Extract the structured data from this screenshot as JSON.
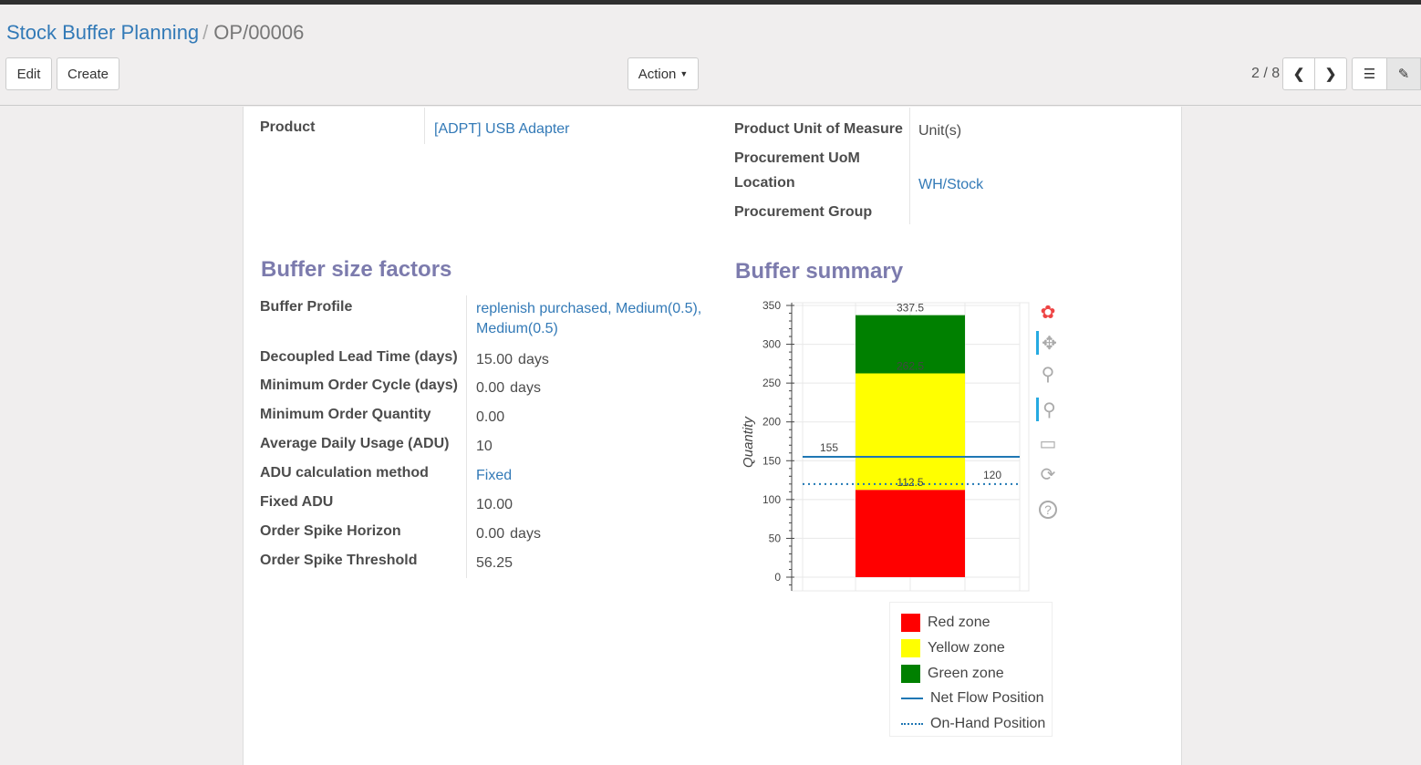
{
  "breadcrumb": {
    "parent": "Stock Buffer Planning",
    "current": "OP/00006"
  },
  "buttons": {
    "edit": "Edit",
    "create": "Create",
    "action": "Action"
  },
  "pager": {
    "value": "2 / 8"
  },
  "fields": {
    "product": {
      "label": "Product",
      "value": "[ADPT] USB Adapter"
    },
    "uom": {
      "label": "Product Unit of Measure",
      "value": "Unit(s)"
    },
    "proc_uom": {
      "label": "Procurement UoM",
      "value": ""
    },
    "location": {
      "label": "Location",
      "value": "WH/Stock"
    },
    "proc_group": {
      "label": "Procurement Group",
      "value": ""
    }
  },
  "factors": {
    "title": "Buffer size factors",
    "rows": [
      {
        "label": "Buffer Profile",
        "value": "replenish purchased, Medium(0.5), Medium(0.5)",
        "unit": "",
        "link": true
      },
      {
        "label": "Decoupled Lead Time (days)",
        "value": "15.00",
        "unit": "days"
      },
      {
        "label": "Minimum Order Cycle (days)",
        "value": "0.00",
        "unit": "days"
      },
      {
        "label": "Minimum Order Quantity",
        "value": "0.00",
        "unit": ""
      },
      {
        "label": "Average Daily Usage (ADU)",
        "value": "10",
        "unit": ""
      },
      {
        "label": "ADU calculation method",
        "value": "Fixed",
        "unit": "",
        "link": true
      },
      {
        "label": "Fixed ADU",
        "value": "10.00",
        "unit": ""
      },
      {
        "label": "Order Spike Horizon",
        "value": "0.00",
        "unit": "days"
      },
      {
        "label": "Order Spike Threshold",
        "value": "56.25",
        "unit": ""
      }
    ]
  },
  "summary": {
    "title": "Buffer summary"
  },
  "chart_data": {
    "type": "bar",
    "ylabel": "Quantity",
    "ylim": [
      0,
      350
    ],
    "yticks": [
      0,
      50,
      100,
      150,
      200,
      250,
      300,
      350
    ],
    "grid": true,
    "stack": [
      {
        "name": "Red zone",
        "from": 0,
        "to": 112.5,
        "color": "#ff0000",
        "label": "112.5"
      },
      {
        "name": "Yellow zone",
        "from": 112.5,
        "to": 262.5,
        "color": "#ffff00",
        "label": "262.5"
      },
      {
        "name": "Green zone",
        "from": 262.5,
        "to": 337.5,
        "color": "#008000",
        "label": "337.5"
      }
    ],
    "lines": [
      {
        "name": "Net Flow Position",
        "value": 155,
        "style": "solid",
        "color": "#1f77b4",
        "label": "155"
      },
      {
        "name": "On-Hand Position",
        "value": 120,
        "style": "dotted",
        "color": "#1f77b4",
        "label": "120"
      }
    ],
    "legend": "bottom-right"
  },
  "toolbar_icons": [
    "bokeh-logo-icon",
    "pan-icon",
    "box-zoom-icon",
    "wheel-zoom-icon",
    "save-icon",
    "reset-icon",
    "help-icon"
  ]
}
